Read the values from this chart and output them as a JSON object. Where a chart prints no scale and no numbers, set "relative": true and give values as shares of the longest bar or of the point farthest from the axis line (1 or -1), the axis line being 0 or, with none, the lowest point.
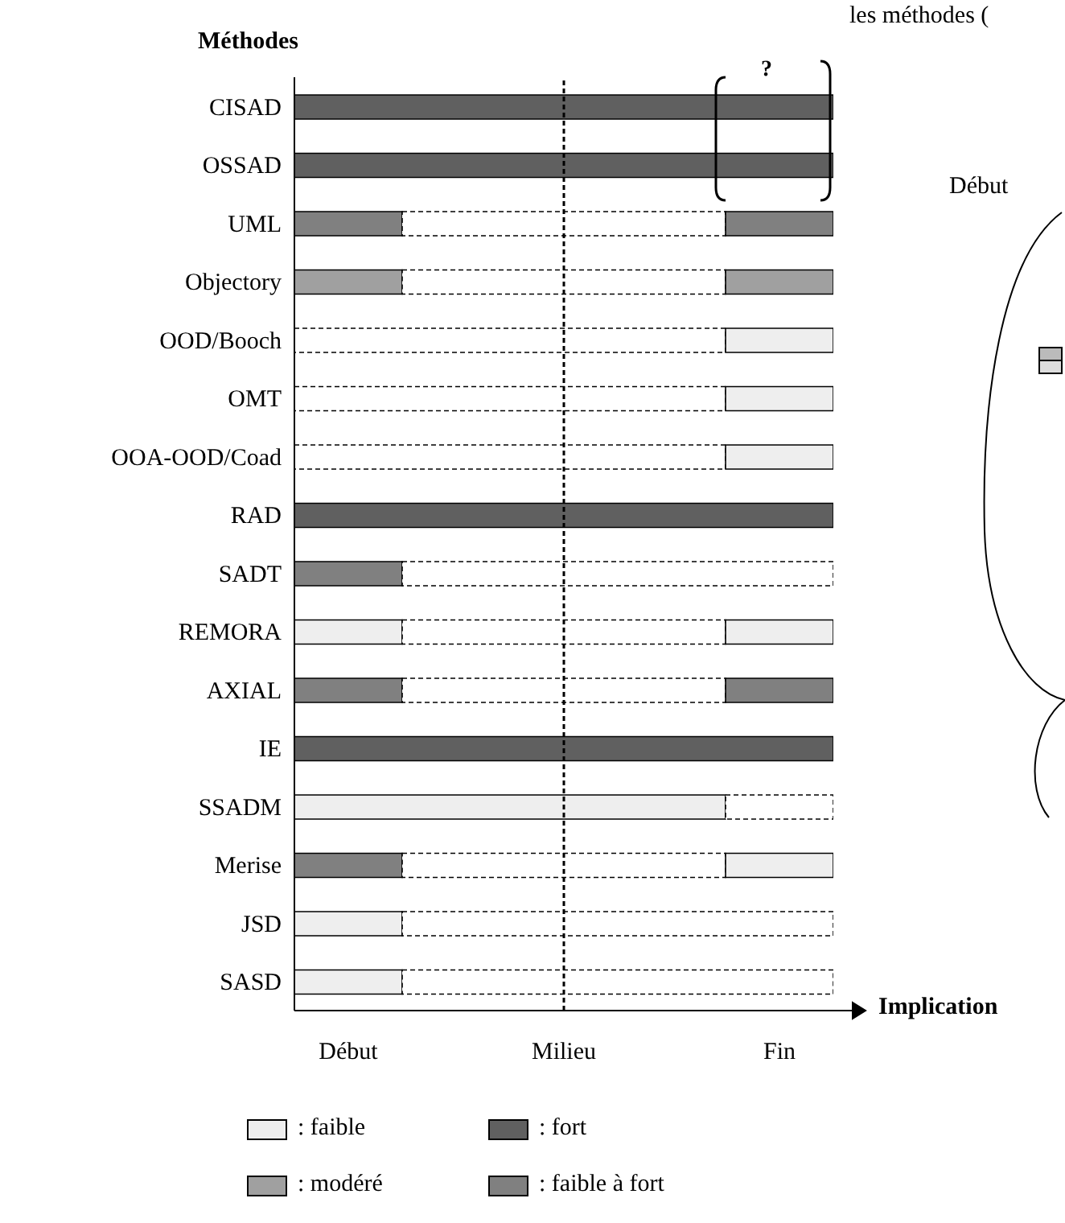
{
  "chart_data": {
    "type": "bar",
    "orientation": "horizontal",
    "stacked": true,
    "relative": true,
    "ylabel": "Méthodes",
    "xlabel": "Implication",
    "categories": [
      "CISAD",
      "OSSAD",
      "UML",
      "Objectory",
      "OOD/Booch",
      "OMT",
      "OOA-OOD/Coad",
      "RAD",
      "SADT",
      "REMORA",
      "AXIAL",
      "IE",
      "SSADM",
      "Merise",
      "JSD",
      "SASD"
    ],
    "series": [
      {
        "name": ": faible",
        "color": "#eeeeee",
        "values": [
          0,
          0,
          0,
          0,
          0,
          0,
          0,
          0,
          0,
          0.2,
          0,
          0,
          0.8,
          0,
          0.2,
          0.2
        ]
      },
      {
        "name": ": modéré",
        "color": "#a0a0a0",
        "values": [
          0,
          0,
          0,
          0.2,
          0,
          0,
          0,
          0,
          0,
          0,
          0,
          0,
          0,
          0,
          0,
          0
        ]
      },
      {
        "name": ": fort",
        "color": "#606060",
        "values": [
          1,
          1,
          0,
          0,
          0,
          0,
          0,
          1,
          0,
          0,
          0,
          1,
          0,
          0,
          0,
          0
        ]
      },
      {
        "name": ": faible à fort",
        "color": "#808080",
        "values": [
          0,
          0,
          0.2,
          0,
          0,
          0,
          0,
          0,
          0.2,
          0,
          0.2,
          0,
          0,
          0.2,
          0,
          0
        ]
      },
      {
        "color": "#ffffff",
        "line_style": "dashed",
        "values": [
          0,
          0,
          0.6,
          0.6,
          0.8,
          0.8,
          0.8,
          0,
          0.8,
          0.6,
          0.6,
          0,
          0.2,
          0.6,
          0.8,
          0.8
        ]
      },
      {
        "color": "#eeeeee",
        "values": [
          0,
          0,
          0,
          0,
          0.2,
          0.2,
          0.2,
          0,
          0,
          0.2,
          0,
          0,
          0,
          0.2,
          0,
          0
        ]
      },
      {
        "color": "#a0a0a0",
        "values": [
          0,
          0,
          0,
          0.2,
          0,
          0,
          0,
          0,
          0,
          0,
          0,
          0,
          0,
          0,
          0,
          0
        ]
      },
      {
        "color": "#808080",
        "values": [
          0,
          0,
          0.2,
          0,
          0,
          0,
          0,
          0,
          0,
          0,
          0.2,
          0,
          0,
          0,
          0,
          0
        ]
      }
    ],
    "ref_lines": [
      {
        "axis": "x",
        "value": 0.5,
        "line_style": "dashed"
      }
    ],
    "legend": "bottom",
    "annotations": [
      "?",
      "les méthodes (",
      "Début",
      "Début",
      "Milieu",
      "Fin"
    ]
  }
}
